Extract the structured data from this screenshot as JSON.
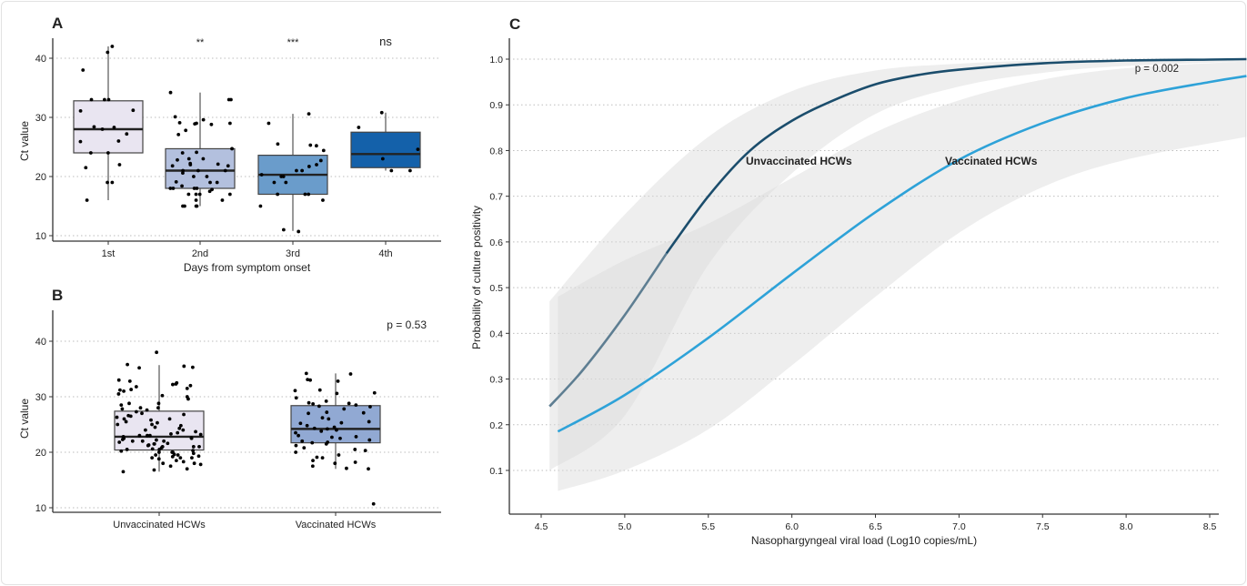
{
  "chart_data": [
    {
      "panel": "A",
      "type": "box",
      "ylabel": "Ct value",
      "xlabel": "Days from symptom onset",
      "ylim": [
        9,
        44
      ],
      "yticks": [
        10,
        20,
        30,
        40
      ],
      "grid": "horizontal-dotted",
      "categories": [
        "1st",
        "2nd",
        "3rd",
        "4th"
      ],
      "significance": [
        "",
        "**",
        "***",
        "ns"
      ],
      "fill_colors": [
        "#e9e5f1",
        "#b3c0de",
        "#6a9ccb",
        "#1461aa"
      ],
      "boxes": [
        {
          "q1": 24,
          "median": 28,
          "q3": 32.8,
          "whisker_low": 16,
          "whisker_high": 42
        },
        {
          "q1": 18,
          "median": 21,
          "q3": 24.7,
          "whisker_low": 15,
          "whisker_high": 34.2
        },
        {
          "q1": 17,
          "median": 20.3,
          "q3": 23.6,
          "whisker_low": 10.8,
          "whisker_high": 30.6
        },
        {
          "q1": 21.5,
          "median": 23.8,
          "q3": 27.5,
          "whisker_low": 21,
          "whisker_high": 30.8
        }
      ],
      "points": [
        [
          41,
          42,
          38,
          33,
          33,
          33,
          31.1,
          31.2,
          28.3,
          28,
          28.4,
          27.2,
          26,
          25.9,
          24,
          24,
          22,
          21.5,
          19,
          19,
          16
        ],
        [
          34.2,
          33,
          33,
          30.1,
          29,
          29,
          29.1,
          28.9,
          29.6,
          28.8,
          27.8,
          27.1,
          24.7,
          24.1,
          24,
          23,
          23,
          22.8,
          22.1,
          22,
          22.2,
          21.8,
          21.8,
          21,
          21,
          21,
          20.6,
          20,
          20,
          19,
          19,
          19.1,
          18.4,
          18,
          18,
          18,
          18,
          17.8,
          17.5,
          17,
          17,
          17,
          17,
          16,
          16,
          15,
          15,
          15,
          15
        ],
        [
          30.6,
          29,
          25.5,
          25.3,
          25.2,
          24.4,
          22.7,
          22,
          21.7,
          21,
          21,
          20.3,
          20,
          20,
          19,
          19,
          17,
          17,
          17,
          16,
          15,
          11,
          10.7
        ],
        [
          30.8,
          28.3,
          24.6,
          23,
          21,
          21
        ]
      ]
    },
    {
      "panel": "B",
      "type": "box",
      "ylabel": "Ct value",
      "xlabel": "",
      "ylim": [
        9,
        46
      ],
      "yticks": [
        10,
        20,
        30,
        40
      ],
      "grid": "horizontal-dotted",
      "categories": [
        "Unvaccinated HCWs",
        "Vaccinated HCWs"
      ],
      "annotation": "p = 0.53",
      "fill_colors": [
        "#e9e5f1",
        "#91a9d3"
      ],
      "boxes": [
        {
          "q1": 20.4,
          "median": 22.8,
          "q3": 27.4,
          "whisker_low": 16.5,
          "whisker_high": 35.7
        },
        {
          "q1": 21.7,
          "median": 24.2,
          "q3": 28.4,
          "whisker_low": 17,
          "whisker_high": 34.2
        }
      ],
      "points": [
        [
          38,
          35.8,
          35.5,
          35.3,
          35.2,
          33,
          32.8,
          32.5,
          32.3,
          32.2,
          32,
          31.8,
          31.5,
          31.3,
          31.2,
          31,
          30.5,
          30.2,
          30,
          29.6,
          28.8,
          28.8,
          28.5,
          28,
          28,
          27.8,
          27.6,
          27.3,
          27,
          26.8,
          26.6,
          26.5,
          26.3,
          26,
          26,
          25.8,
          25.5,
          25.3,
          25,
          25,
          24.8,
          24.5,
          24.3,
          24,
          23.7,
          23.5,
          23.3,
          23,
          23,
          22.8,
          22.6,
          22.5,
          22.3,
          22,
          22,
          21.8,
          21.6,
          21.5,
          21.3,
          21,
          21,
          20.8,
          20.6,
          20.5,
          20.3,
          20,
          20,
          19.8,
          19.6,
          19.5,
          19.3,
          19,
          19,
          18.8,
          18.5,
          18.3,
          18,
          18,
          17.8,
          17.5,
          17,
          16.8,
          16.5,
          21,
          22,
          20,
          23,
          19,
          24,
          20.5,
          21.5,
          22.5,
          19.5,
          20.2,
          21.2,
          22.2,
          23.2,
          19.2
        ],
        [
          34.2,
          34.1,
          33.1,
          33,
          32.8,
          31.2,
          31.1,
          30.7,
          30.6,
          29.8,
          29.2,
          28.9,
          28.8,
          28.7,
          28.5,
          28.3,
          28.2,
          27.8,
          27.2,
          27.1,
          27,
          26.2,
          26,
          25.5,
          25.3,
          25.2,
          24.8,
          24.5,
          24.3,
          24.2,
          24,
          23.8,
          23.5,
          23,
          22.8,
          22.7,
          22.5,
          22.2,
          22,
          21.8,
          21.7,
          21.5,
          21.2,
          20.8,
          20.5,
          20.3,
          20,
          19.5,
          19.1,
          19,
          18.5,
          18.2,
          18,
          17.5,
          17.1,
          17,
          10.7
        ]
      ]
    },
    {
      "panel": "C",
      "type": "line",
      "xlabel": "Nasophargyngeal viral load (Log10 copies/mL)",
      "ylabel": "Probability of culture positivity",
      "xlim": [
        4.31,
        8.74
      ],
      "ylim": [
        0.0,
        1.05
      ],
      "xticks": [
        "4.5",
        "5.0",
        "5.5",
        "6.0",
        "6.5",
        "7.0",
        "7.5",
        "8.0",
        "8.5"
      ],
      "yticks": [
        "0.1",
        "0.2",
        "0.3",
        "0.4",
        "0.5",
        "0.6",
        "0.7",
        "0.8",
        "0.9",
        "1.0"
      ],
      "grid": "horizontal-dotted",
      "annotation": "p = 0.002",
      "series": [
        {
          "name": "Unvaccinated HCWs",
          "color": "#1b4d6c",
          "x": [
            4.55,
            4.75,
            5.0,
            5.25,
            5.5,
            5.75,
            6.0,
            6.25,
            6.5,
            6.75,
            7.0,
            7.5,
            8.0,
            8.5,
            8.72
          ],
          "y": [
            0.24,
            0.32,
            0.44,
            0.575,
            0.7,
            0.8,
            0.865,
            0.91,
            0.945,
            0.965,
            0.977,
            0.991,
            0.997,
            0.999,
            1.0
          ],
          "ci_x": [
            4.55,
            5.0,
            5.5,
            6.0,
            6.5,
            7.0,
            7.5,
            8.0,
            8.72
          ],
          "ci_low": [
            0.1,
            0.22,
            0.55,
            0.75,
            0.88,
            0.94,
            0.97,
            0.985,
            0.995
          ],
          "ci_high": [
            0.47,
            0.66,
            0.83,
            0.93,
            0.975,
            0.99,
            0.997,
            0.999,
            1.0
          ]
        },
        {
          "name": "Vaccinated HCWs",
          "color": "#2ea2d8",
          "x": [
            4.6,
            5.0,
            5.5,
            6.0,
            6.5,
            7.0,
            7.5,
            8.0,
            8.5,
            8.72
          ],
          "y": [
            0.185,
            0.265,
            0.39,
            0.53,
            0.665,
            0.78,
            0.86,
            0.915,
            0.95,
            0.963
          ],
          "ci_x": [
            4.6,
            5.0,
            5.5,
            6.0,
            6.5,
            7.0,
            7.5,
            8.0,
            8.72
          ],
          "ci_low": [
            0.055,
            0.1,
            0.19,
            0.33,
            0.48,
            0.62,
            0.72,
            0.78,
            0.83
          ],
          "ci_high": [
            0.48,
            0.56,
            0.64,
            0.74,
            0.84,
            0.91,
            0.955,
            0.98,
            0.995
          ]
        }
      ]
    }
  ],
  "panel_labels": [
    "A",
    "B",
    "C"
  ]
}
